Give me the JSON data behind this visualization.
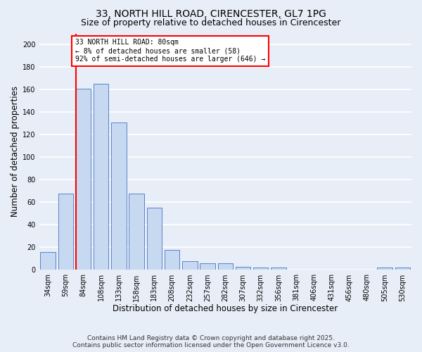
{
  "title_line1": "33, NORTH HILL ROAD, CIRENCESTER, GL7 1PG",
  "title_line2": "Size of property relative to detached houses in Cirencester",
  "xlabel": "Distribution of detached houses by size in Cirencester",
  "ylabel": "Number of detached properties",
  "categories": [
    "34sqm",
    "59sqm",
    "84sqm",
    "108sqm",
    "133sqm",
    "158sqm",
    "183sqm",
    "208sqm",
    "232sqm",
    "257sqm",
    "282sqm",
    "307sqm",
    "332sqm",
    "356sqm",
    "381sqm",
    "406sqm",
    "431sqm",
    "456sqm",
    "480sqm",
    "505sqm",
    "530sqm"
  ],
  "values": [
    16,
    68,
    161,
    165,
    131,
    68,
    55,
    18,
    8,
    6,
    6,
    3,
    2,
    2,
    0,
    0,
    0,
    0,
    0,
    2,
    2
  ],
  "bar_color": "#c6d9f0",
  "bar_edge_color": "#4472c4",
  "red_line_index": 2,
  "ylim": [
    0,
    210
  ],
  "yticks": [
    0,
    20,
    40,
    60,
    80,
    100,
    120,
    140,
    160,
    180,
    200
  ],
  "annotation_text": "33 NORTH HILL ROAD: 80sqm\n← 8% of detached houses are smaller (58)\n92% of semi-detached houses are larger (646) →",
  "annotation_box_color": "white",
  "annotation_box_edge_color": "red",
  "footnote_line1": "Contains HM Land Registry data © Crown copyright and database right 2025.",
  "footnote_line2": "Contains public sector information licensed under the Open Government Licence v3.0.",
  "background_color": "#e8eef8",
  "plot_background_color": "#e8eef8",
  "grid_color": "white",
  "title_fontsize": 10,
  "subtitle_fontsize": 9,
  "xlabel_fontsize": 8.5,
  "ylabel_fontsize": 8.5,
  "tick_fontsize": 7,
  "footnote_fontsize": 6.5
}
